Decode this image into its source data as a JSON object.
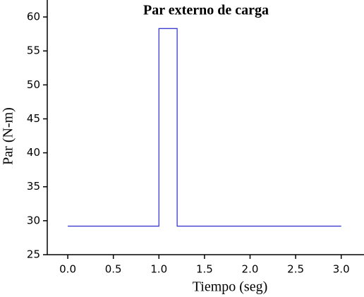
{
  "chart_data": {
    "type": "line",
    "title": "Par externo de carga",
    "x_label": "Tiempo (seg)",
    "y_label": "Par (N-m)",
    "x": [
      0,
      1.0,
      1.0,
      1.2,
      1.2,
      3.0
    ],
    "series": [
      {
        "name": "Par",
        "color": "#3a3ad0",
        "values": [
          29.2,
          29.2,
          58.3,
          58.3,
          29.2,
          29.2
        ]
      }
    ],
    "xlim": [
      -0.225,
      3.25
    ],
    "xticks": [
      {
        "value": 0,
        "label": "0.0"
      },
      {
        "value": 0.5,
        "label": "0.5"
      },
      {
        "value": 1,
        "label": "1.0"
      },
      {
        "value": 1.5,
        "label": "1.5"
      },
      {
        "value": 2,
        "label": "2.0"
      },
      {
        "value": 2.5,
        "label": "2.5"
      },
      {
        "value": 3,
        "label": "3.0"
      }
    ],
    "ylim": [
      25,
      62.5
    ],
    "yticks": [
      25,
      30,
      35,
      40,
      45,
      50,
      55,
      60
    ]
  }
}
